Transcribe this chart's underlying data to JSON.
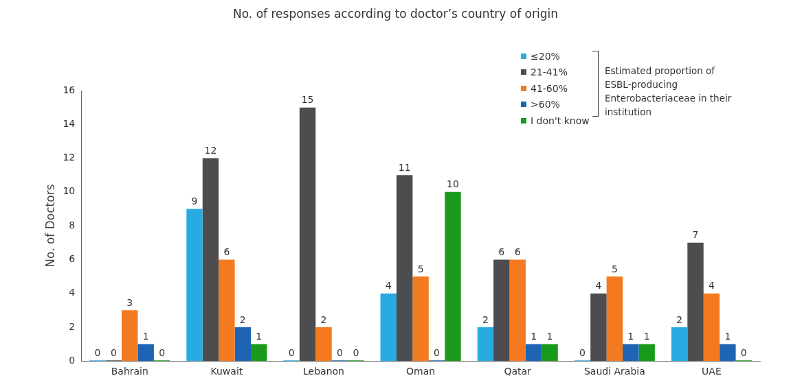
{
  "chart_data": {
    "type": "bar",
    "title": "No. of responses according to doctor’s country of origin",
    "ylabel": "No. of Doctors",
    "categories": [
      "Bahrain",
      "Kuwait",
      "Lebanon",
      "Oman",
      "Qatar",
      "Saudi Arabia",
      "UAE"
    ],
    "series": [
      {
        "name": "≤20%",
        "color": "#29abe2",
        "values": [
          0,
          9,
          0,
          4,
          2,
          0,
          2
        ]
      },
      {
        "name": "21-41%",
        "color": "#4d4d4f",
        "values": [
          0,
          12,
          15,
          11,
          6,
          4,
          7
        ]
      },
      {
        "name": "41-60%",
        "color": "#f47a20",
        "values": [
          3,
          6,
          2,
          5,
          6,
          5,
          4
        ]
      },
      {
        "name": ">60%",
        "color": "#1e64b4",
        "values": [
          1,
          2,
          0,
          0,
          1,
          1,
          1
        ]
      },
      {
        "name": "I don't know",
        "color": "#1a9a1a",
        "values": [
          0,
          1,
          0,
          10,
          1,
          1,
          0
        ]
      }
    ],
    "ylim": [
      0,
      16
    ],
    "yticks": [
      0,
      2,
      4,
      6,
      8,
      10,
      12,
      14,
      16
    ],
    "grid": false,
    "legend": "top right",
    "data_labels": true,
    "annotations": [
      "Estimated proportion of ESBL-producing Enterobacteriaceae in their institution"
    ]
  }
}
